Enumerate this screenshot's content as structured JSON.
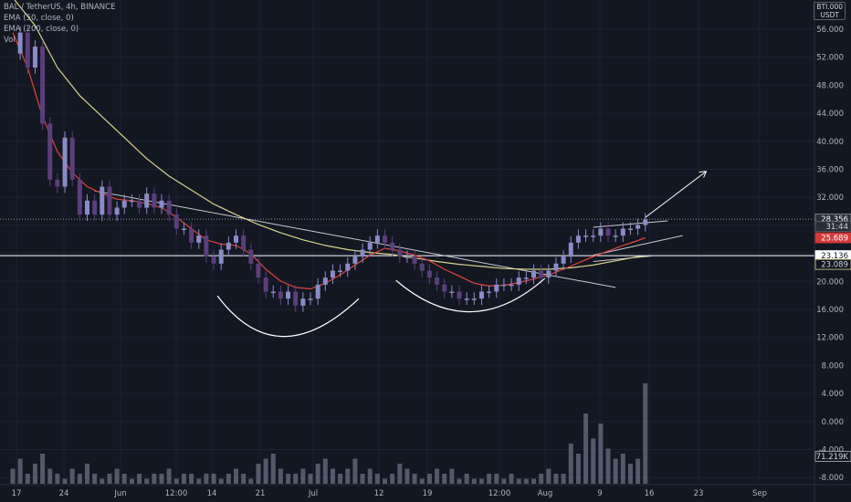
{
  "legend": {
    "symbol": "BAL / TetherUS, 4h, BINANCE",
    "ema50": "EMA (50, close, 0)",
    "ema200": "EMA (200, close, 0)",
    "vol": "Vol"
  },
  "currency_badge": {
    "top": "BTI.000",
    "bottom": "USDT"
  },
  "colors": {
    "background": "#131722",
    "grid": "#1e2230",
    "up_candle": "#8a8cc8",
    "down_candle": "#5a3f7a",
    "ema50": "#e0443a",
    "ema200": "#d8d28a",
    "trendline": "#c8c8d0",
    "support": "#ffffff",
    "volume": "#6b6f80",
    "price_tag": "#2a2e39",
    "ema50_tag": "#d23a3a"
  },
  "chart_data": {
    "type": "candlestick",
    "title": "BAL / TetherUS, 4h, BINANCE",
    "x_tick_labels": [
      "17",
      "24",
      "Jun",
      "12:00",
      "14",
      "21",
      "Jul",
      "12",
      "19",
      "12:00",
      "Aug",
      "9",
      "16",
      "23",
      "Sep"
    ],
    "y_tick_labels": [
      "56.000",
      "52.000",
      "48.000",
      "44.000",
      "40.000",
      "36.000",
      "32.000",
      "28.000",
      "24.000",
      "20.000",
      "16.000",
      "12.000",
      "8.000",
      "4.000",
      "0.000",
      "-4.000",
      "-8.000"
    ],
    "price_axis_tags": {
      "last_price": "28.356",
      "countdown": "31:44",
      "ema50": "25.689",
      "support": "23.136",
      "ema200": "23.089",
      "volume": "71.219K"
    },
    "price_path": [
      [
        0,
        52
      ],
      [
        1,
        55
      ],
      [
        2,
        50
      ],
      [
        3,
        53
      ],
      [
        4,
        42
      ],
      [
        5,
        34
      ],
      [
        6,
        33
      ],
      [
        7,
        40
      ],
      [
        8,
        34
      ],
      [
        9,
        29
      ],
      [
        10,
        31
      ],
      [
        11,
        29
      ],
      [
        12,
        33
      ],
      [
        13,
        29
      ],
      [
        14,
        30
      ],
      [
        15,
        31
      ],
      [
        16,
        31
      ],
      [
        17,
        30
      ],
      [
        18,
        32
      ],
      [
        19,
        30
      ],
      [
        20,
        31
      ],
      [
        21,
        29
      ],
      [
        22,
        27
      ],
      [
        23,
        27
      ],
      [
        24,
        25
      ],
      [
        25,
        26
      ],
      [
        26,
        23
      ],
      [
        27,
        22
      ],
      [
        28,
        24
      ],
      [
        29,
        25
      ],
      [
        30,
        26
      ],
      [
        31,
        24
      ],
      [
        32,
        22
      ],
      [
        33,
        20
      ],
      [
        34,
        18
      ],
      [
        35,
        18
      ],
      [
        36,
        17
      ],
      [
        37,
        18
      ],
      [
        38,
        16
      ],
      [
        39,
        17
      ],
      [
        40,
        17
      ],
      [
        41,
        19
      ],
      [
        42,
        20
      ],
      [
        43,
        21
      ],
      [
        44,
        21
      ],
      [
        45,
        22
      ],
      [
        46,
        23
      ],
      [
        47,
        24
      ],
      [
        48,
        25
      ],
      [
        49,
        26
      ],
      [
        50,
        25
      ],
      [
        51,
        24
      ],
      [
        52,
        23
      ],
      [
        53,
        23
      ],
      [
        54,
        22
      ],
      [
        55,
        21
      ],
      [
        56,
        20
      ],
      [
        57,
        19
      ],
      [
        58,
        18
      ],
      [
        59,
        18
      ],
      [
        60,
        17
      ],
      [
        61,
        17
      ],
      [
        62,
        17
      ],
      [
        63,
        18
      ],
      [
        64,
        18
      ],
      [
        65,
        19
      ],
      [
        66,
        19
      ],
      [
        67,
        19
      ],
      [
        68,
        20
      ],
      [
        69,
        20
      ],
      [
        70,
        21
      ],
      [
        71,
        20
      ],
      [
        72,
        21
      ],
      [
        73,
        22
      ],
      [
        74,
        23
      ],
      [
        75,
        25
      ],
      [
        76,
        26
      ],
      [
        77,
        26
      ],
      [
        78,
        26
      ],
      [
        79,
        27
      ],
      [
        80,
        26
      ],
      [
        81,
        26
      ],
      [
        82,
        27
      ],
      [
        83,
        27
      ],
      [
        84,
        27.5
      ],
      [
        85,
        28.3
      ]
    ],
    "ema50": [
      [
        0,
        55
      ],
      [
        2,
        50
      ],
      [
        4,
        43
      ],
      [
        6,
        38
      ],
      [
        8,
        35
      ],
      [
        10,
        33
      ],
      [
        12,
        32
      ],
      [
        14,
        31.2
      ],
      [
        16,
        31
      ],
      [
        18,
        30.6
      ],
      [
        20,
        30
      ],
      [
        22,
        28.6
      ],
      [
        24,
        27
      ],
      [
        26,
        25.4
      ],
      [
        28,
        24.8
      ],
      [
        30,
        24.6
      ],
      [
        32,
        23.4
      ],
      [
        34,
        21.2
      ],
      [
        36,
        19.5
      ],
      [
        38,
        18.6
      ],
      [
        40,
        18.4
      ],
      [
        42,
        19.2
      ],
      [
        44,
        20.4
      ],
      [
        46,
        21.8
      ],
      [
        48,
        23.2
      ],
      [
        50,
        24.2
      ],
      [
        52,
        23.8
      ],
      [
        54,
        23.2
      ],
      [
        56,
        22.4
      ],
      [
        58,
        21.2
      ],
      [
        60,
        20.2
      ],
      [
        62,
        19.2
      ],
      [
        64,
        18.8
      ],
      [
        66,
        18.9
      ],
      [
        68,
        19.3
      ],
      [
        70,
        19.8
      ],
      [
        72,
        20.4
      ],
      [
        74,
        21.2
      ],
      [
        76,
        22.1
      ],
      [
        78,
        23.0
      ],
      [
        80,
        23.8
      ],
      [
        82,
        24.6
      ],
      [
        84,
        25.3
      ],
      [
        85,
        25.689
      ]
    ],
    "ema200": [
      [
        0,
        60
      ],
      [
        3,
        56
      ],
      [
        6,
        50
      ],
      [
        9,
        46
      ],
      [
        12,
        43
      ],
      [
        15,
        40
      ],
      [
        18,
        37
      ],
      [
        21,
        34.5
      ],
      [
        24,
        32.5
      ],
      [
        27,
        30.5
      ],
      [
        30,
        29
      ],
      [
        33,
        27.6
      ],
      [
        36,
        26.4
      ],
      [
        39,
        25.4
      ],
      [
        42,
        24.6
      ],
      [
        45,
        24
      ],
      [
        48,
        23.6
      ],
      [
        51,
        23.3
      ],
      [
        54,
        22.8
      ],
      [
        57,
        22.3
      ],
      [
        60,
        21.9
      ],
      [
        63,
        21.6
      ],
      [
        66,
        21.3
      ],
      [
        69,
        21.2
      ],
      [
        72,
        21.2
      ],
      [
        75,
        21.4
      ],
      [
        78,
        21.8
      ],
      [
        81,
        22.4
      ],
      [
        84,
        23.0
      ],
      [
        85,
        23.089
      ]
    ],
    "volume": [
      3,
      5,
      2,
      4,
      6,
      3,
      2,
      1,
      3,
      2,
      4,
      2,
      1,
      2,
      3,
      2,
      1,
      2,
      1,
      2,
      2,
      3,
      1,
      2,
      2,
      1,
      2,
      2,
      1,
      2,
      3,
      2,
      1,
      4,
      5,
      6,
      3,
      2,
      2,
      3,
      2,
      4,
      5,
      3,
      2,
      3,
      5,
      2,
      3,
      2,
      1,
      2,
      4,
      3,
      2,
      1,
      2,
      3,
      2,
      3,
      1,
      2,
      1,
      1,
      2,
      2,
      1,
      2,
      1,
      1,
      1,
      2,
      3,
      2,
      2,
      8,
      6,
      14,
      9,
      12,
      7,
      5,
      6,
      4,
      5,
      20
    ]
  }
}
